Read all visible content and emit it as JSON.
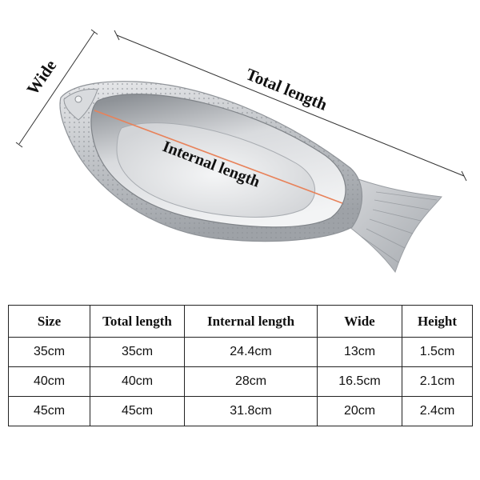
{
  "labels": {
    "wide": "Wide",
    "total_length": "Total length",
    "internal_length": "Internal length"
  },
  "colors": {
    "measure_line": "#e8825a",
    "tray_metal": "#b9bcc0",
    "table_border": "#222222"
  },
  "table": {
    "headers": [
      "Size",
      "Total length",
      "Internal length",
      "Wide",
      "Height"
    ],
    "rows": [
      [
        "35cm",
        "35cm",
        "24.4cm",
        "13cm",
        "1.5cm"
      ],
      [
        "40cm",
        "40cm",
        "28cm",
        "16.5cm",
        "2.1cm"
      ],
      [
        "45cm",
        "45cm",
        "31.8cm",
        "20cm",
        "2.4cm"
      ]
    ]
  }
}
